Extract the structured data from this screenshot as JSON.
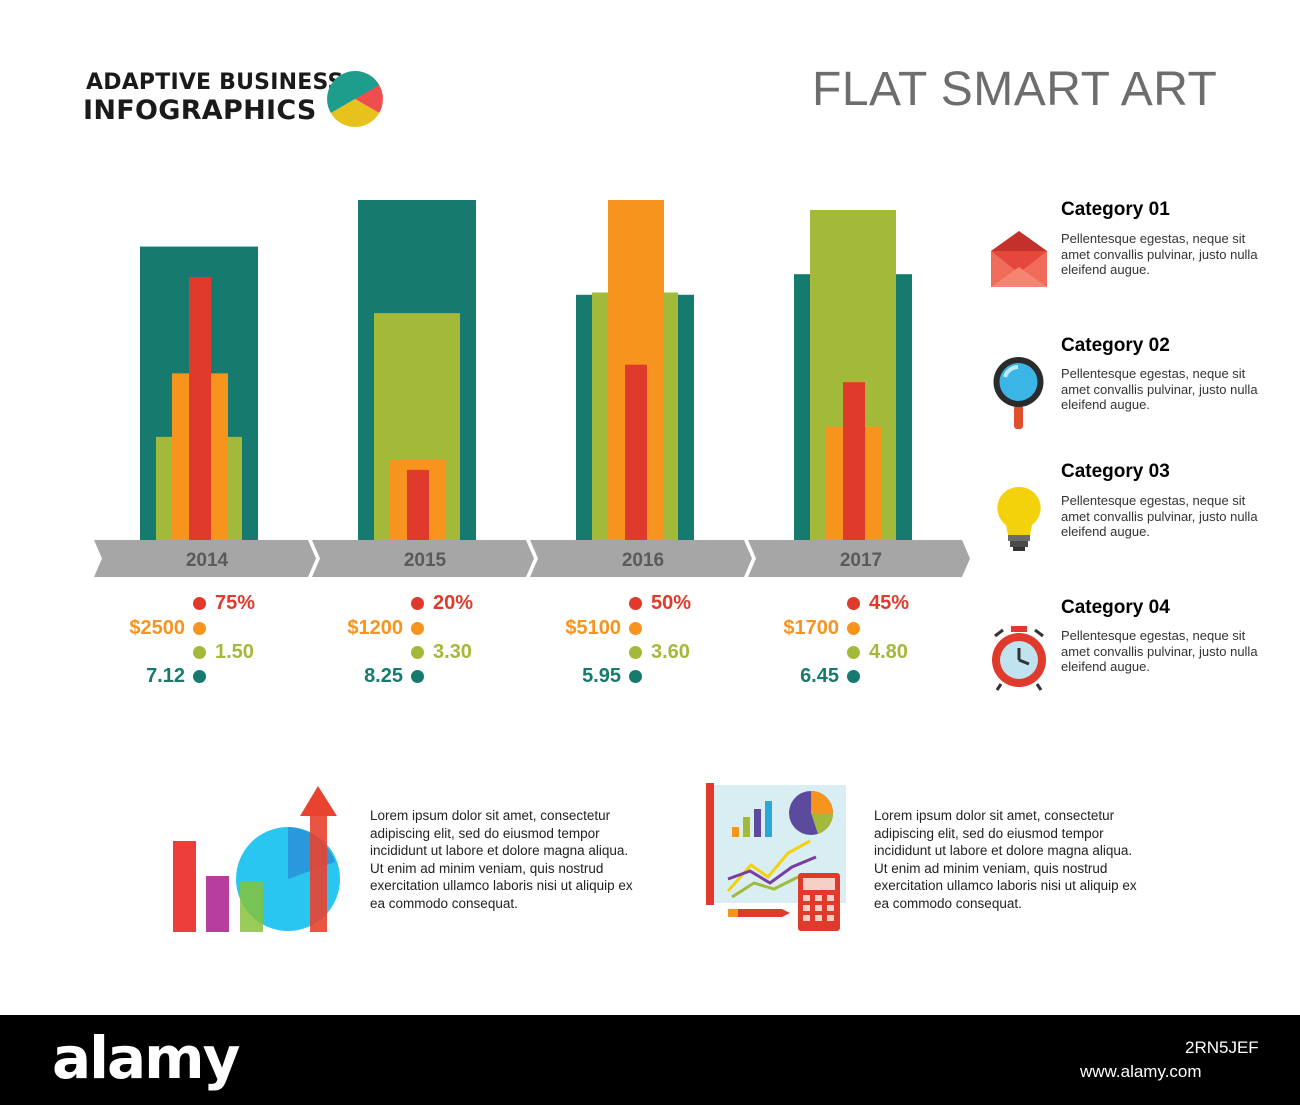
{
  "header": {
    "brand_line1": "ADAPTIVE BUSINESS",
    "brand_line2": "INFOGRAPHICS",
    "title": "FLAT SMART ART"
  },
  "colors": {
    "teal": "#167a6e",
    "olive": "#a3b93a",
    "orange": "#f7941d",
    "red": "#e03a2c",
    "gray": "#a6a6a6"
  },
  "chart_data": {
    "type": "bar",
    "categories": [
      "2014",
      "2015",
      "2016",
      "2017"
    ],
    "series": [
      {
        "name": "Category 04",
        "color": "#167a6e",
        "values": [
          7.12,
          8.25,
          5.95,
          6.45
        ],
        "labels": [
          "7.12",
          "8.25",
          "5.95",
          "6.45"
        ]
      },
      {
        "name": "Category 03",
        "color": "#a3b93a",
        "values": [
          1.5,
          3.3,
          3.6,
          4.8
        ],
        "labels": [
          "1.50",
          "3.30",
          "3.60",
          "4.80"
        ]
      },
      {
        "name": "Category 02",
        "color": "#f7941d",
        "values": [
          2500,
          1200,
          5100,
          1700
        ],
        "labels": [
          "$2500",
          "$1200",
          "$5100",
          "$1700"
        ]
      },
      {
        "name": "Category 01",
        "color": "#e03a2c",
        "values": [
          75,
          20,
          50,
          45
        ],
        "labels": [
          "75%",
          "20%",
          "50%",
          "45%"
        ]
      }
    ]
  },
  "legend": [
    {
      "title": "Category 01",
      "desc": "Pellentesque egestas, neque sit amet convallis pulvinar, justo nulla eleifend augue.",
      "icon": "envelope-icon",
      "color": "#e03a2c"
    },
    {
      "title": "Category 02",
      "desc": "Pellentesque egestas, neque sit amet convallis pulvinar, justo nulla eleifend augue.",
      "icon": "magnifier-icon",
      "color": "#f7941d"
    },
    {
      "title": "Category 03",
      "desc": "Pellentesque egestas, neque sit amet convallis pulvinar, justo nulla eleifend augue.",
      "icon": "lightbulb-icon",
      "color": "#a3b93a"
    },
    {
      "title": "Category 04",
      "desc": "Pellentesque egestas, neque sit amet convallis pulvinar, justo nulla eleifend augue.",
      "icon": "alarm-clock-icon",
      "color": "#167a6e"
    }
  ],
  "bottom": {
    "text_left": "Lorem ipsum dolor sit amet, consectetur adipiscing elit, sed do eiusmod tempor incididunt ut labore et dolore magna aliqua. Ut enim ad minim veniam, quis nostrud exercitation ullamco laboris nisi ut aliquip ex ea commodo consequat.",
    "text_right": "Lorem ipsum dolor sit amet, consectetur adipiscing elit, sed do eiusmod tempor incididunt ut labore et dolore magna aliqua. Ut enim ad minim veniam, quis nostrud exercitation ullamco laboris nisi ut aliquip ex ea commodo consequat.",
    "icon_left": "growth-chart-icon",
    "icon_right": "analytics-calculator-icon"
  },
  "footer": {
    "logo": "alamy",
    "image_id": "2RN5JEF",
    "url": "www.alamy.com"
  }
}
